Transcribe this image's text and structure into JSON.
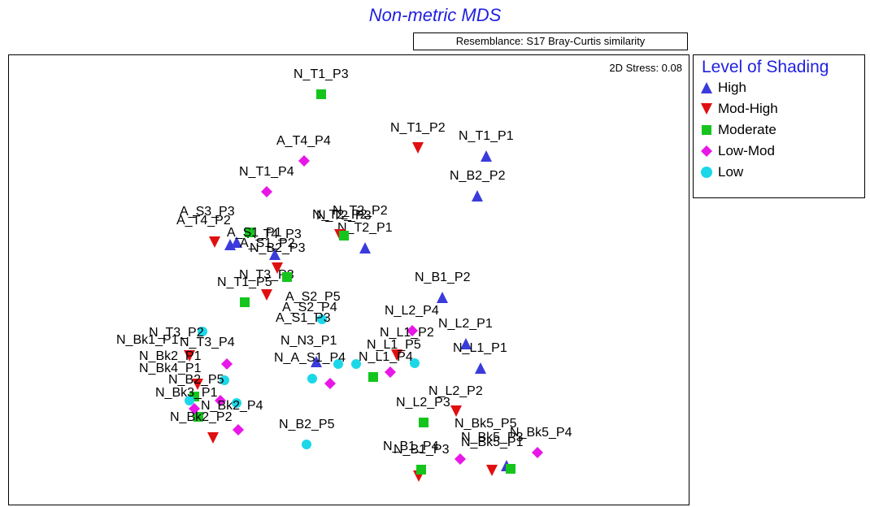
{
  "title": "Non-metric MDS",
  "resemblance": "Resemblance: S17 Bray-Curtis similarity",
  "stress": "2D Stress: 0.08",
  "legend": {
    "title": "Level of Shading",
    "items": [
      {
        "label": "High",
        "shape": "triangle-up",
        "color": "#3b3bdb"
      },
      {
        "label": "Mod-High",
        "shape": "triangle-down",
        "color": "#e01010"
      },
      {
        "label": "Moderate",
        "shape": "square",
        "color": "#15c51e"
      },
      {
        "label": "Low-Mod",
        "shape": "diamond",
        "color": "#e817e8"
      },
      {
        "label": "Low",
        "shape": "circle",
        "color": "#1ad8e8"
      }
    ]
  },
  "chart_data": {
    "type": "scatter",
    "title": "Non-metric MDS",
    "xlabel": "",
    "ylabel": "",
    "xlim": [
      0,
      836
    ],
    "ylim": [
      0,
      553
    ],
    "grid": false,
    "legend_position": "right",
    "series": [
      {
        "name": "High",
        "points": [
          {
            "label": "N_T1_P1",
            "x": 587,
            "y": 124
          },
          {
            "label": "N_B2_P2",
            "x": 576,
            "y": 173
          },
          {
            "label": "",
            "x": 272,
            "y": 233
          },
          {
            "label": "",
            "x": 280,
            "y": 230
          },
          {
            "label": "N_T2_P1",
            "x": 438,
            "y": 237
          },
          {
            "label": "A_T4_P3",
            "x": 327,
            "y": 245
          },
          {
            "label": "N_B1_P2",
            "x": 533,
            "y": 298
          },
          {
            "label": "N_L2_P1",
            "x": 562,
            "y": 355
          },
          {
            "label": "N_L1_P1",
            "x": 580,
            "y": 385
          },
          {
            "label": "",
            "x": 378,
            "y": 377
          },
          {
            "label": "",
            "x": 612,
            "y": 505
          }
        ]
      },
      {
        "name": "Mod-High",
        "points": [
          {
            "label": "N_T1_P2",
            "x": 503,
            "y": 114
          },
          {
            "label": "",
            "x": 253,
            "y": 230
          },
          {
            "label": "N_T2_P2",
            "x": 407,
            "y": 221
          },
          {
            "label": "N_B2_P3",
            "x": 330,
            "y": 262
          },
          {
            "label": "N_T3_P3",
            "x": 317,
            "y": 295
          },
          {
            "label": "",
            "x": 477,
            "y": 369
          },
          {
            "label": "N_L2_P2",
            "x": 550,
            "y": 438
          },
          {
            "label": "",
            "x": 251,
            "y": 471
          },
          {
            "label": "",
            "x": 504,
            "y": 518
          },
          {
            "label": "",
            "x": 594,
            "y": 511
          },
          {
            "label": "",
            "x": 222,
            "y": 370
          },
          {
            "label": "",
            "x": 232,
            "y": 405
          }
        ]
      },
      {
        "name": "Moderate",
        "points": [
          {
            "label": "N_T1_P3",
            "x": 384,
            "y": 48
          },
          {
            "label": "",
            "x": 296,
            "y": 218
          },
          {
            "label": "N_T2_P3",
            "x": 412,
            "y": 222
          },
          {
            "label": "",
            "x": 342,
            "y": 273
          },
          {
            "label": "N_T1_P5",
            "x": 290,
            "y": 304
          },
          {
            "label": "",
            "x": 448,
            "y": 396
          },
          {
            "label": "N_L2_P3",
            "x": 510,
            "y": 452
          },
          {
            "label": "N_B1_P3",
            "x": 507,
            "y": 510
          },
          {
            "label": "",
            "x": 617,
            "y": 509
          },
          {
            "label": "",
            "x": 233,
            "y": 445
          },
          {
            "label": "",
            "x": 228,
            "y": 420
          }
        ]
      },
      {
        "name": "Low-Mod",
        "points": [
          {
            "label": "A_T4_P4",
            "x": 363,
            "y": 130
          },
          {
            "label": "N_T1_P4",
            "x": 317,
            "y": 168
          },
          {
            "label": "N_L2_P4",
            "x": 496,
            "y": 339
          },
          {
            "label": "",
            "x": 469,
            "y": 390
          },
          {
            "label": "",
            "x": 395,
            "y": 404
          },
          {
            "label": "",
            "x": 282,
            "y": 461
          },
          {
            "label": "",
            "x": 555,
            "y": 497
          },
          {
            "label": "N_Bk5_P4",
            "x": 650,
            "y": 489
          },
          {
            "label": "",
            "x": 268,
            "y": 380
          },
          {
            "label": "",
            "x": 228,
            "y": 435
          },
          {
            "label": "",
            "x": 260,
            "y": 425
          }
        ]
      },
      {
        "name": "Low",
        "points": [
          {
            "label": "",
            "x": 373,
            "y": 398
          },
          {
            "label": "",
            "x": 405,
            "y": 380
          },
          {
            "label": "",
            "x": 427,
            "y": 380
          },
          {
            "label": "",
            "x": 499,
            "y": 379
          },
          {
            "label": "N_B2_P5",
            "x": 366,
            "y": 479
          },
          {
            "label": "",
            "x": 280,
            "y": 428
          },
          {
            "label": "",
            "x": 222,
            "y": 425
          },
          {
            "label": "",
            "x": 238,
            "y": 340
          },
          {
            "label": "",
            "x": 385,
            "y": 325
          },
          {
            "label": "",
            "x": 265,
            "y": 400
          }
        ]
      }
    ],
    "extra_labels": [
      {
        "text": "A_S3_P3",
        "x": 210,
        "y": 197
      },
      {
        "text": "A_T4_P2",
        "x": 206,
        "y": 208
      },
      {
        "text": "A_S1_P1",
        "x": 268,
        "y": 223
      },
      {
        "text": "A_S1_P2",
        "x": 284,
        "y": 236
      },
      {
        "text": "N_T2_P2",
        "x": 398,
        "y": 196
      },
      {
        "text": "A_S2_P5",
        "x": 340,
        "y": 302
      },
      {
        "text": "A_S2_P4",
        "x": 336,
        "y": 315
      },
      {
        "text": "A_S1_P3",
        "x": 328,
        "y": 328
      },
      {
        "text": "N_L1_P2",
        "x": 456,
        "y": 346
      },
      {
        "text": "N_L1_P5",
        "x": 440,
        "y": 361
      },
      {
        "text": "N_N3_P1",
        "x": 334,
        "y": 356
      },
      {
        "text": "N_L1_P4",
        "x": 430,
        "y": 376
      },
      {
        "text": "N_A_S1_P4",
        "x": 326,
        "y": 377
      },
      {
        "text": "N_Bk1_P1",
        "x": 132,
        "y": 355
      },
      {
        "text": "N_T3_P2",
        "x": 172,
        "y": 346
      },
      {
        "text": "N_T3_P4",
        "x": 210,
        "y": 358
      },
      {
        "text": "N_Bk2_P1",
        "x": 160,
        "y": 375
      },
      {
        "text": "N_Bk4_P1",
        "x": 160,
        "y": 390
      },
      {
        "text": "N_B2_P5",
        "x": 196,
        "y": 404
      },
      {
        "text": "N_Bk3_P1",
        "x": 180,
        "y": 420
      },
      {
        "text": "N_Bk2_P4",
        "x": 236,
        "y": 436
      },
      {
        "text": "N_Bk2_P2",
        "x": 198,
        "y": 450
      },
      {
        "text": "N_Bk5_P5",
        "x": 548,
        "y": 458
      },
      {
        "text": "N_Bk5_P3",
        "x": 556,
        "y": 475
      },
      {
        "text": "N_B1_P4",
        "x": 460,
        "y": 486
      },
      {
        "text": "N_Bk5_P1",
        "x": 556,
        "y": 481
      }
    ]
  }
}
